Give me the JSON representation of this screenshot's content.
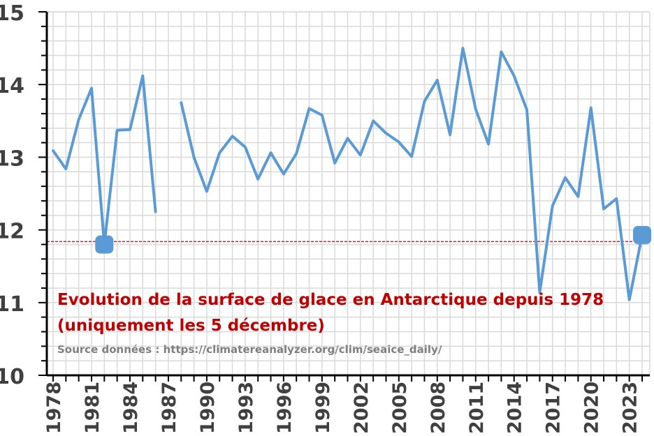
{
  "chart_data": {
    "type": "line",
    "title_line1": "Evolution de la surface de glace en Antarctique depuis 1978",
    "title_line2": "(uniquement les 5 décembre)",
    "source": "Source données : https://climatereanalyzer.org/clim/seaice_daily/",
    "xlabel": "",
    "ylabel": "",
    "xlim": [
      1978,
      2024
    ],
    "ylim": [
      10,
      15
    ],
    "yticks": [
      10,
      11,
      12,
      13,
      14,
      15
    ],
    "xticks": [
      1978,
      1981,
      1984,
      1987,
      1990,
      1993,
      1996,
      1999,
      2002,
      2005,
      2008,
      2011,
      2014,
      2017,
      2020,
      2023
    ],
    "grid": true,
    "series_color": "#5b9bd5",
    "reference_line": {
      "value": 11.84,
      "color": "#c00000",
      "style": "dashed"
    },
    "highlight_points": [
      {
        "x": 1982,
        "y": 11.8
      },
      {
        "x": 2024,
        "y": 11.93
      }
    ],
    "series": [
      {
        "x": [
          1978,
          1979,
          1980,
          1981,
          1982,
          1983,
          1984,
          1985,
          1986,
          1987,
          1988,
          1989,
          1990,
          1991,
          1992,
          1993,
          1994,
          1995,
          1996,
          1997,
          1998,
          1999,
          2000,
          2001,
          2002,
          2003,
          2004,
          2005,
          2006,
          2007,
          2008,
          2009,
          2010,
          2011,
          2012,
          2013,
          2014,
          2015,
          2016,
          2017,
          2018,
          2019,
          2020,
          2021,
          2022,
          2023,
          2024
        ],
        "values": [
          13.09,
          12.84,
          13.52,
          13.95,
          11.8,
          13.37,
          13.38,
          14.12,
          12.25,
          null,
          13.75,
          13.0,
          12.53,
          13.06,
          13.29,
          13.14,
          12.7,
          13.06,
          12.77,
          13.05,
          13.67,
          13.58,
          12.92,
          13.26,
          13.03,
          13.5,
          13.33,
          13.21,
          13.01,
          13.77,
          14.06,
          13.31,
          14.5,
          13.66,
          13.18,
          14.45,
          14.12,
          13.65,
          11.14,
          12.33,
          12.72,
          12.46,
          13.68,
          12.29,
          12.43,
          11.04,
          11.93
        ]
      }
    ]
  }
}
